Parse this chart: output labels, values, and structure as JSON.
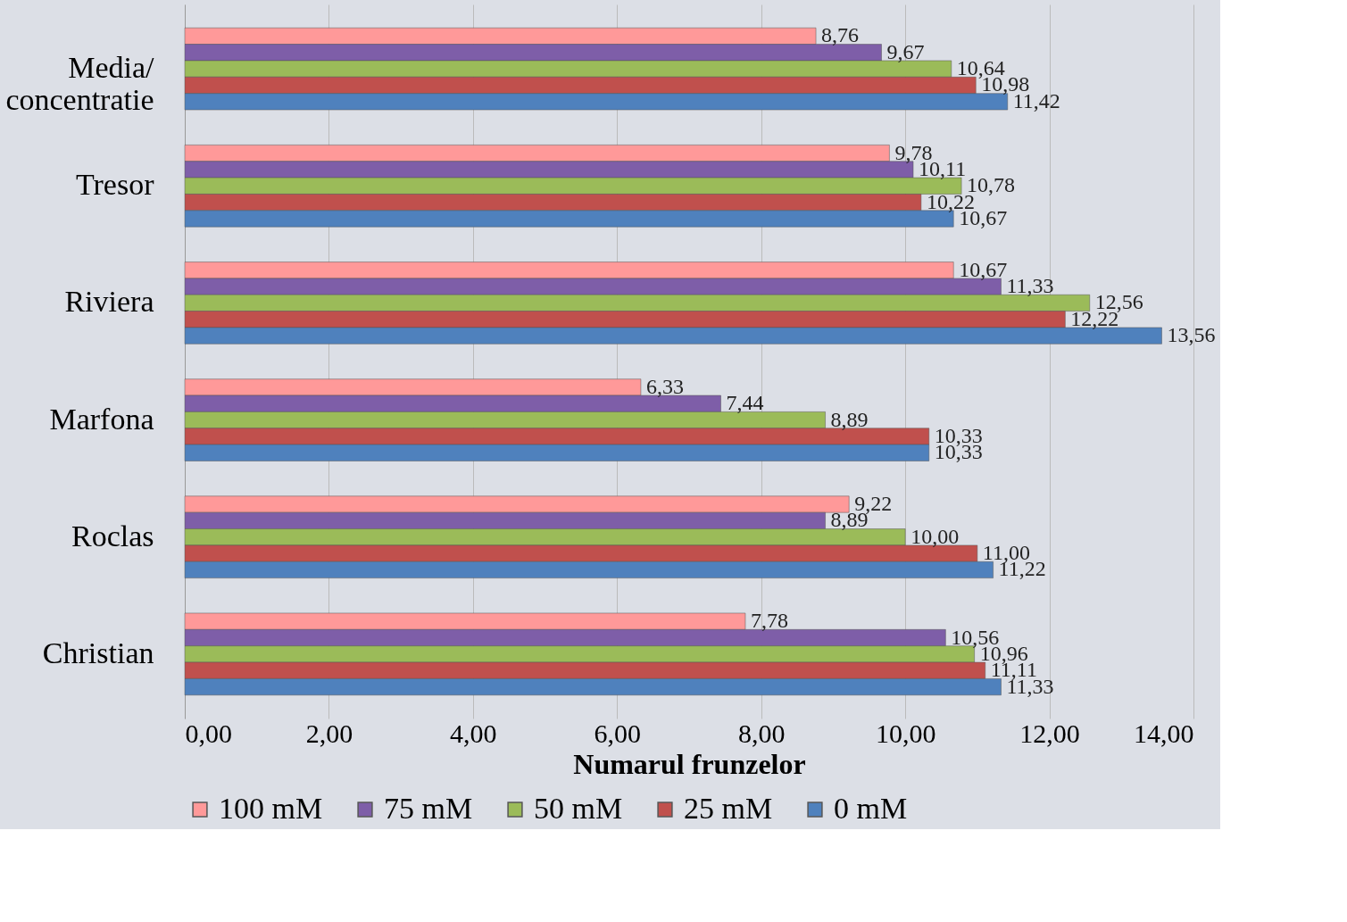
{
  "chart_data": {
    "type": "bar",
    "orientation": "horizontal",
    "xlabel": "Numarul  frunzelor",
    "categories": [
      "Media/\nconcentratie",
      "Tresor",
      "Riviera",
      "Marfona",
      "Roclas",
      "Christian"
    ],
    "series": [
      {
        "name": "100 mM",
        "color": "#ff9999",
        "values": [
          8.76,
          9.78,
          10.67,
          6.33,
          9.22,
          7.78
        ],
        "value_labels": [
          "8,76",
          "9,78",
          "10,67",
          "6,33",
          "9,22",
          "7,78"
        ]
      },
      {
        "name": "75 mM",
        "color": "#7e5ea8",
        "values": [
          9.67,
          10.11,
          11.33,
          7.44,
          8.89,
          10.56
        ],
        "value_labels": [
          "9,67",
          "10,11",
          "11,33",
          "7,44",
          "8,89",
          "10,56"
        ]
      },
      {
        "name": "50 mM",
        "color": "#9bbb59",
        "values": [
          10.64,
          10.78,
          12.56,
          8.89,
          10.0,
          10.96
        ],
        "value_labels": [
          "10,64",
          "10,78",
          "12,56",
          "8,89",
          "10,00",
          "10,96"
        ]
      },
      {
        "name": "25 mM",
        "color": "#c0504d",
        "values": [
          10.98,
          10.22,
          12.22,
          10.33,
          11.0,
          11.11
        ],
        "value_labels": [
          "10,98",
          "10,22",
          "12,22",
          "10,33",
          "11,00",
          "11,11"
        ]
      },
      {
        "name": "0 mM",
        "color": "#4f81bd",
        "values": [
          11.42,
          10.67,
          13.56,
          10.33,
          11.22,
          11.33
        ],
        "value_labels": [
          "11,42",
          "10,67",
          "13,56",
          "10,33",
          "11,22",
          "11,33"
        ]
      }
    ],
    "xlim": [
      0,
      14
    ],
    "xticks": [
      {
        "value": 0,
        "label": "0,00"
      },
      {
        "value": 2,
        "label": "2,00"
      },
      {
        "value": 4,
        "label": "4,00"
      },
      {
        "value": 6,
        "label": "6,00"
      },
      {
        "value": 8,
        "label": "8,00"
      },
      {
        "value": 10,
        "label": "10,00"
      },
      {
        "value": 12,
        "label": "12,00"
      },
      {
        "value": 14,
        "label": "14,00"
      }
    ],
    "grid": "x",
    "legend": "bottom"
  }
}
